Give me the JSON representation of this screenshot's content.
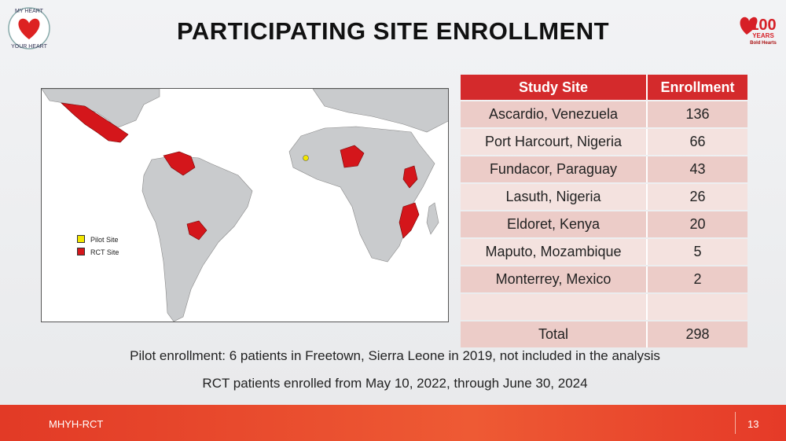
{
  "header": {
    "title": "PARTICIPATING SITE ENROLLMENT",
    "left_logo": {
      "top": "MY HEART",
      "bottom": "YOUR HEART"
    },
    "right_logo": {
      "number": "100",
      "years": "YEARS",
      "tagline": "Bold Hearts"
    }
  },
  "map": {
    "legend": [
      "Pilot Site",
      "RCT Site"
    ]
  },
  "table": {
    "header": [
      "Study Site",
      "Enrollment"
    ],
    "rows": [
      [
        "Ascardio, Venezuela",
        136
      ],
      [
        "Port Harcourt, Nigeria",
        66
      ],
      [
        "Fundacor, Paraguay",
        43
      ],
      [
        "Lasuth, Nigeria",
        26
      ],
      [
        "Eldoret, Kenya",
        20
      ],
      [
        "Maputo, Mozambique",
        5
      ],
      [
        "Monterrey, Mexico",
        2
      ]
    ],
    "total": [
      "Total",
      298
    ]
  },
  "notes": [
    "Pilot enrollment: 6 patients in Freetown, Sierra Leone in 2019, not included in the analysis",
    "RCT patients enrolled from May 10, 2022, through June 30, 2024"
  ],
  "footer": {
    "label": "MHYH-RCT",
    "page": 13
  }
}
